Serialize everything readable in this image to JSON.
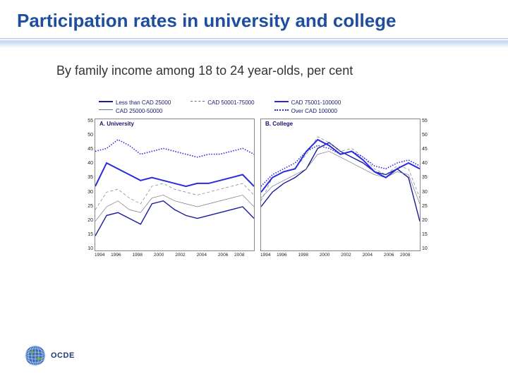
{
  "title": "Participation rates in university and college",
  "subtitle": "By family income among 18 to 24 year-olds, per cent",
  "title_color": "#1f4e9c",
  "subtitle_color": "#333333",
  "logo_text": "OCDE",
  "legend": {
    "items": [
      {
        "label": "Less than CAD 25000",
        "style": "thick-solid",
        "color": "#1a1a9c"
      },
      {
        "label": "CAD 25000-50000",
        "style": "thin-solid",
        "color": "#6a6a8a"
      },
      {
        "label": "CAD 50001-75000",
        "style": "dash",
        "color": "#6a6a8a"
      },
      {
        "label": "CAD 75001-100000",
        "style": "thick-solid",
        "color": "#2a2ae0"
      },
      {
        "label": "Over CAD 100000",
        "style": "dot",
        "color": "#2a2ae0"
      }
    ]
  },
  "chart": {
    "y_min": 10,
    "y_max": 55,
    "y_step": 5,
    "x_labels": [
      "1994",
      "1996",
      "1998",
      "2000",
      "2002",
      "2004",
      "2006",
      "2008"
    ],
    "panel_a": {
      "label": "A. University",
      "series": {
        "lt25": [
          15,
          22,
          23,
          21,
          19,
          26,
          27,
          24,
          22,
          21,
          22,
          23,
          24,
          25,
          21
        ],
        "25_50": [
          20,
          25,
          27,
          24,
          23,
          28,
          29,
          27,
          26,
          25,
          26,
          27,
          28,
          29,
          25
        ],
        "50_75": [
          24,
          30,
          31,
          28,
          26,
          32,
          33,
          31,
          30,
          29,
          30,
          31,
          32,
          33,
          29
        ],
        "75_100": [
          32,
          40,
          38,
          36,
          34,
          35,
          34,
          33,
          32,
          33,
          33,
          34,
          35,
          36,
          32
        ],
        "gt100": [
          44,
          45,
          48,
          46,
          43,
          44,
          45,
          44,
          43,
          42,
          43,
          43,
          44,
          45,
          43
        ]
      }
    },
    "panel_b": {
      "label": "B. College",
      "series": {
        "lt25": [
          25,
          30,
          33,
          35,
          38,
          45,
          47,
          44,
          42,
          40,
          37,
          36,
          38,
          35,
          20
        ],
        "25_50": [
          28,
          32,
          34,
          36,
          38,
          43,
          44,
          42,
          40,
          38,
          36,
          35,
          37,
          36,
          26
        ],
        "50_75": [
          27,
          35,
          37,
          38,
          43,
          49,
          47,
          44,
          45,
          42,
          38,
          36,
          39,
          38,
          28
        ],
        "75_100": [
          30,
          35,
          37,
          38,
          44,
          48,
          46,
          43,
          44,
          41,
          37,
          35,
          38,
          40,
          38
        ],
        "gt100": [
          32,
          36,
          38,
          40,
          44,
          46,
          45,
          43,
          44,
          42,
          39,
          38,
          40,
          41,
          39
        ]
      }
    },
    "styles": {
      "lt25": {
        "color": "#1a1a9c",
        "width": 1.4,
        "dash": ""
      },
      "25_50": {
        "color": "#7a7a8a",
        "width": 0.7,
        "dash": ""
      },
      "50_75": {
        "color": "#7a7a8a",
        "width": 0.7,
        "dash": "4 3"
      },
      "75_100": {
        "color": "#2a2ae0",
        "width": 2.0,
        "dash": ""
      },
      "gt100": {
        "color": "#2a2ae0",
        "width": 1.6,
        "dash": "1.5 2"
      }
    }
  }
}
